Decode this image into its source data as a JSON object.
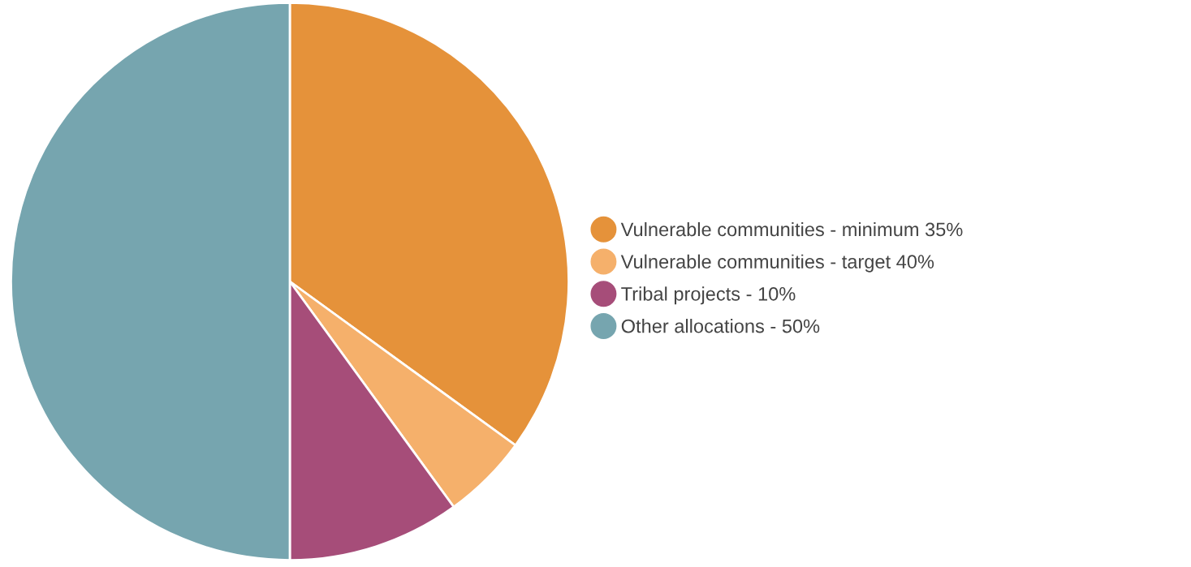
{
  "chart_data": {
    "type": "pie",
    "categories": [
      "Vulnerable communities - minimum 35%",
      "Vulnerable communities - target 40%",
      "Tribal projects - 10%",
      "Other allocations - 50%"
    ],
    "values": [
      35,
      5,
      10,
      50
    ],
    "colors": [
      "#e5923a",
      "#f5b06b",
      "#a64d79",
      "#76a5af"
    ],
    "legend": "right"
  }
}
